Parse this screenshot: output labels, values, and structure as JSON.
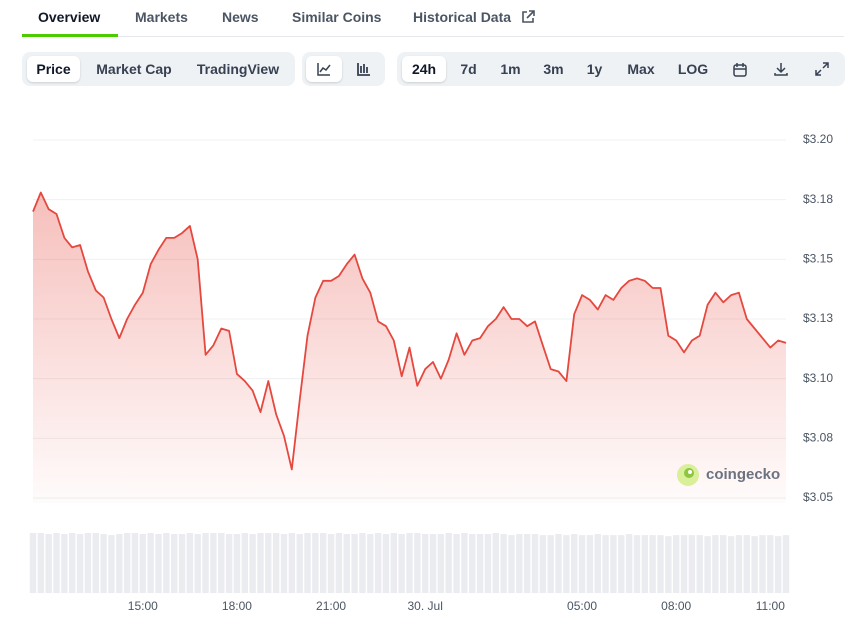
{
  "tabs": [
    "Overview",
    "Markets",
    "News",
    "Similar Coins",
    "Historical Data"
  ],
  "controls": {
    "chart_types": [
      "Price",
      "Market Cap",
      "TradingView"
    ],
    "ranges": [
      "24h",
      "7d",
      "1m",
      "3m",
      "1y",
      "Max",
      "LOG"
    ]
  },
  "watermark": "coingecko",
  "chart_data": {
    "type": "line",
    "color": "#e5483e",
    "grid": true,
    "categories": [
      null,
      null,
      null,
      null,
      null,
      null,
      null,
      null,
      null,
      null,
      null,
      null,
      null,
      null,
      "15:00",
      null,
      null,
      null,
      null,
      null,
      null,
      null,
      null,
      null,
      null,
      null,
      "18:00",
      null,
      null,
      null,
      null,
      null,
      null,
      null,
      null,
      null,
      null,
      null,
      "21:00",
      null,
      null,
      null,
      null,
      null,
      null,
      null,
      null,
      null,
      null,
      null,
      "30. Jul",
      null,
      null,
      null,
      null,
      null,
      null,
      null,
      null,
      null,
      null,
      null,
      null,
      null,
      null,
      null,
      null,
      null,
      null,
      null,
      "05:00",
      null,
      null,
      null,
      null,
      null,
      null,
      null,
      null,
      null,
      null,
      null,
      "08:00",
      null,
      null,
      null,
      null,
      null,
      null,
      null,
      null,
      null,
      null,
      null,
      "11:00",
      null,
      null
    ],
    "values": [
      3.17,
      3.178,
      3.171,
      3.169,
      3.159,
      3.155,
      3.156,
      3.145,
      3.137,
      3.134,
      3.125,
      3.117,
      3.125,
      3.131,
      3.136,
      3.148,
      3.154,
      3.159,
      3.159,
      3.161,
      3.164,
      3.15,
      3.11,
      3.114,
      3.121,
      3.12,
      3.102,
      3.099,
      3.095,
      3.086,
      3.099,
      3.085,
      3.076,
      3.062,
      3.091,
      3.118,
      3.134,
      3.141,
      3.141,
      3.143,
      3.148,
      3.152,
      3.142,
      3.136,
      3.124,
      3.122,
      3.116,
      3.101,
      3.113,
      3.097,
      3.104,
      3.107,
      3.1,
      3.108,
      3.119,
      3.11,
      3.116,
      3.117,
      3.122,
      3.125,
      3.13,
      3.125,
      3.125,
      3.122,
      3.124,
      3.114,
      3.104,
      3.103,
      3.099,
      3.127,
      3.135,
      3.133,
      3.129,
      3.135,
      3.133,
      3.138,
      3.141,
      3.142,
      3.141,
      3.138,
      3.138,
      3.118,
      3.116,
      3.111,
      3.116,
      3.118,
      3.131,
      3.136,
      3.132,
      3.135,
      3.136,
      3.125,
      3.121,
      3.117,
      3.113,
      3.116,
      3.115
    ],
    "volume": [
      58,
      58,
      57,
      58,
      57,
      58,
      57,
      58,
      58,
      57,
      56,
      57,
      58,
      58,
      57,
      58,
      57,
      58,
      57,
      57,
      58,
      57,
      58,
      58,
      58,
      57,
      57,
      58,
      57,
      58,
      58,
      58,
      57,
      58,
      57,
      58,
      58,
      58,
      57,
      58,
      57,
      57,
      58,
      57,
      58,
      57,
      58,
      57,
      58,
      58,
      57,
      57,
      57,
      58,
      57,
      58,
      57,
      57,
      57,
      58,
      57,
      56,
      57,
      57,
      57,
      56,
      56,
      57,
      56,
      57,
      56,
      56,
      57,
      56,
      56,
      56,
      57,
      56,
      56,
      56,
      56,
      55,
      56,
      56,
      56,
      56,
      55,
      56,
      56,
      55,
      56,
      56,
      55,
      56,
      56,
      55,
      56
    ],
    "ylim": [
      3.05,
      3.2
    ],
    "yticks": [
      {
        "value": 3.05,
        "label": "$3.05"
      },
      {
        "value": 3.075,
        "label": "$3.08"
      },
      {
        "value": 3.1,
        "label": "$3.10"
      },
      {
        "value": 3.125,
        "label": "$3.13"
      },
      {
        "value": 3.15,
        "label": "$3.15"
      },
      {
        "value": 3.175,
        "label": "$3.18"
      },
      {
        "value": 3.2,
        "label": "$3.20"
      }
    ]
  }
}
